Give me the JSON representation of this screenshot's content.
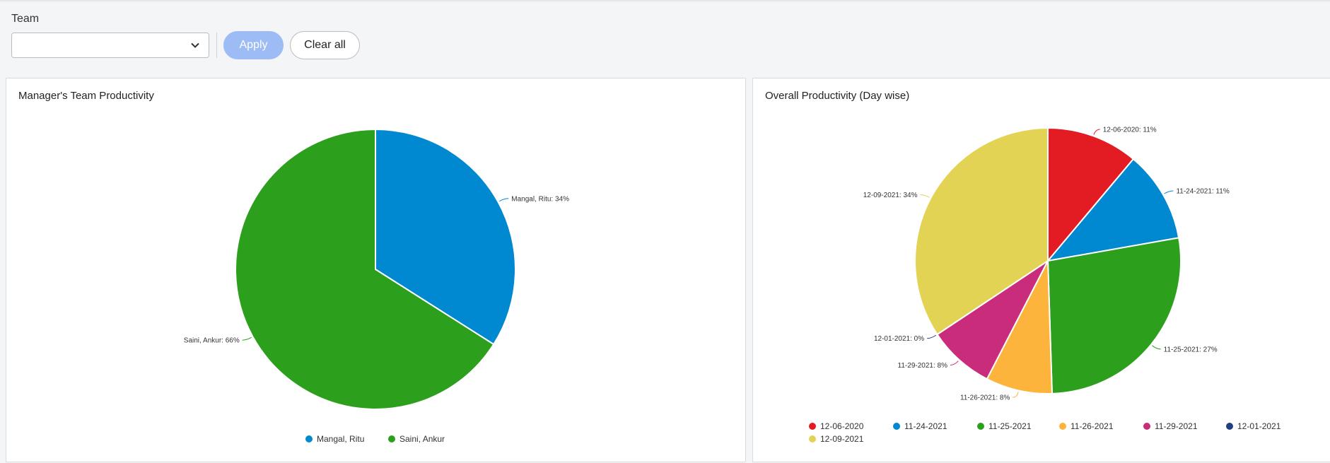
{
  "filters": {
    "team_label": "Team",
    "team_value": "",
    "apply_label": "Apply",
    "clear_label": "Clear all"
  },
  "colors": {
    "accent_disabled": "#9dbcf5"
  },
  "chart_data": [
    {
      "type": "pie",
      "title": "Manager's Team Productivity",
      "legend_position": "bottom",
      "slices": [
        {
          "name": "Mangal, Ritu",
          "value": 34,
          "label": "Mangal, Ritu: 34%",
          "color": "#0088d0"
        },
        {
          "name": "Saini, Ankur",
          "value": 66,
          "label": "Saini, Ankur: 66%",
          "color": "#2ca01c"
        }
      ]
    },
    {
      "type": "pie",
      "title": "Overall Productivity (Day wise)",
      "legend_position": "bottom",
      "slices": [
        {
          "name": "12-06-2020",
          "value": 11,
          "label": "12-06-2020: 11%",
          "color": "#e31b23"
        },
        {
          "name": "11-24-2021",
          "value": 11,
          "label": "11-24-2021: 11%",
          "color": "#0088d0"
        },
        {
          "name": "11-25-2021",
          "value": 27,
          "label": "11-25-2021: 27%",
          "color": "#2ca01c"
        },
        {
          "name": "11-26-2021",
          "value": 8,
          "label": "11-26-2021: 8%",
          "color": "#fdb43c"
        },
        {
          "name": "11-29-2021",
          "value": 8,
          "label": "11-29-2021: 8%",
          "color": "#c92c7a"
        },
        {
          "name": "12-01-2021",
          "value": 0,
          "label": "12-01-2021: 0%",
          "color": "#213f7c"
        },
        {
          "name": "12-09-2021",
          "value": 34,
          "label": "12-09-2021: 34%",
          "color": "#e3d354"
        }
      ]
    }
  ]
}
